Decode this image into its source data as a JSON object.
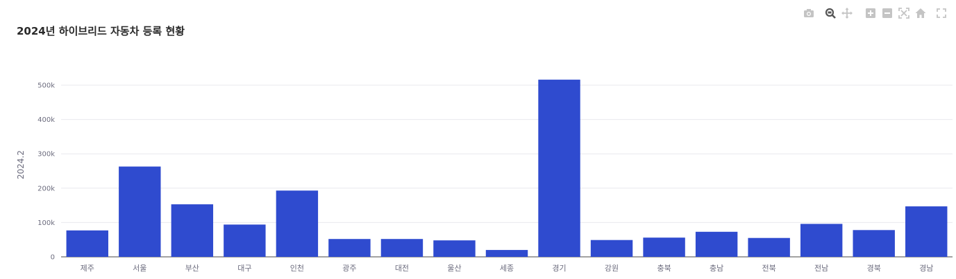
{
  "title": "2024년 하이브리드 자동차 등록 현황",
  "modebar": {
    "icons": [
      "camera-icon",
      "zoom-icon",
      "pan-icon",
      "zoom-in-icon",
      "zoom-out-icon",
      "autoscale-icon",
      "home-icon",
      "fullscreen-icon"
    ]
  },
  "colors": {
    "bar": "#2f4bcf",
    "grid": "#e8e8ee",
    "axis": "#6b6b7d",
    "icon": "#c4c4c4",
    "icon_active": "#555555"
  },
  "chart_data": {
    "type": "bar",
    "ylabel": "2024.2",
    "xlabel": "",
    "ylim": [
      0,
      560000
    ],
    "yticks": [
      0,
      100000,
      200000,
      300000,
      400000,
      500000
    ],
    "ytick_labels": [
      "0",
      "100k",
      "200k",
      "300k",
      "400k",
      "500k"
    ],
    "grid": true,
    "categories": [
      "제주",
      "서울",
      "부산",
      "대구",
      "인천",
      "광주",
      "대전",
      "울산",
      "세종",
      "경기",
      "강원",
      "충북",
      "충남",
      "전북",
      "전남",
      "경북",
      "경남"
    ],
    "values": [
      77000,
      263000,
      153000,
      94000,
      193000,
      52000,
      52000,
      48000,
      20000,
      516000,
      49000,
      56000,
      73000,
      55000,
      96000,
      78000,
      147000
    ]
  }
}
